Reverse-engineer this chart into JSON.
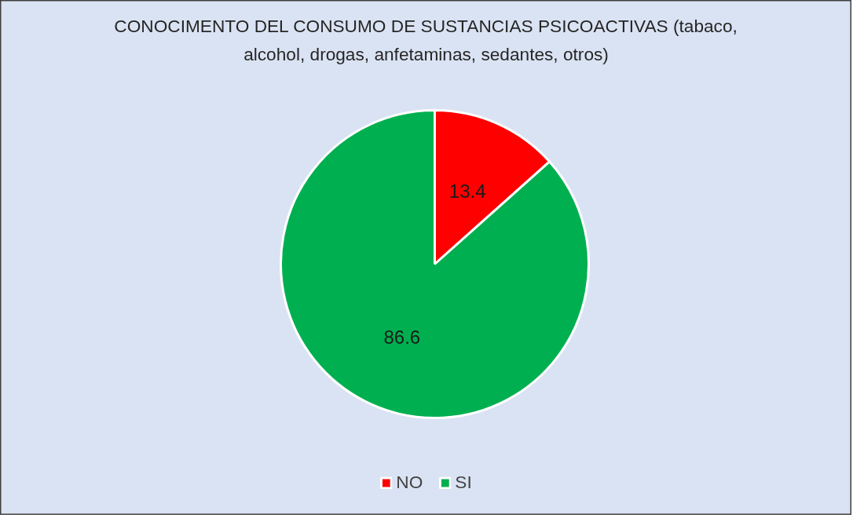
{
  "chart_data": {
    "type": "pie",
    "title": "CONOCIMENTO DEL CONSUMO DE SUSTANCIAS PSICOACTIVAS (tabaco, alcohol, drogas, anfetaminas, sedantes, otros)",
    "categories": [
      "NO",
      "SI"
    ],
    "values": [
      13.4,
      86.6
    ],
    "colors": [
      "#ff0000",
      "#00b050"
    ],
    "data_labels": true,
    "legend": "bottom"
  }
}
